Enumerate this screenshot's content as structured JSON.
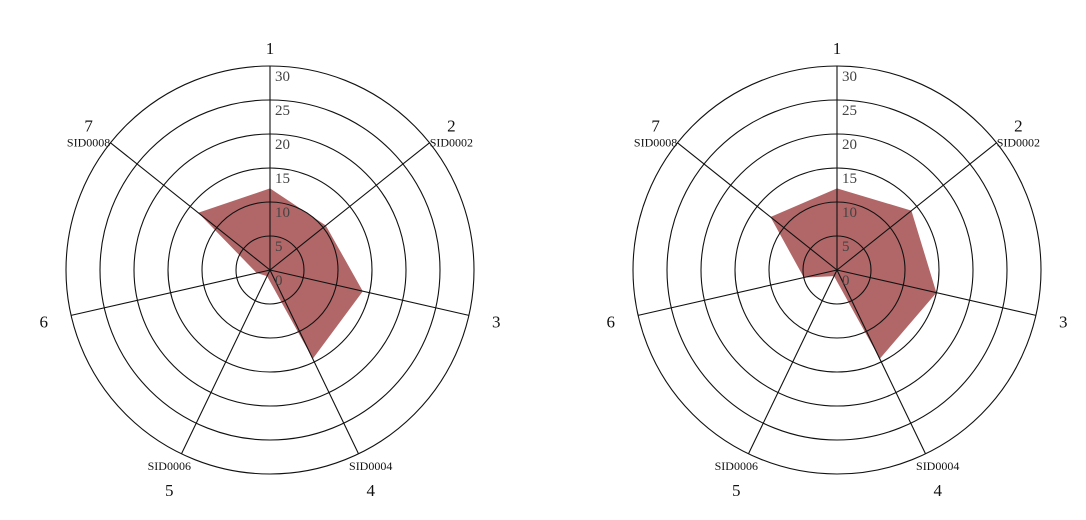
{
  "chart_data": [
    {
      "type": "radar",
      "axes": [
        {
          "number": "1",
          "label": ""
        },
        {
          "number": "2",
          "label": "SID0002"
        },
        {
          "number": "3",
          "label": ""
        },
        {
          "number": "4",
          "label": "SID0004"
        },
        {
          "number": "5",
          "label": "SID0006"
        },
        {
          "number": "6",
          "label": ""
        },
        {
          "number": "7",
          "label": "SID0008"
        }
      ],
      "ticks": [
        "0",
        "5",
        "10",
        "15",
        "20",
        "25",
        "30"
      ],
      "rlim": [
        0,
        30
      ],
      "values": [
        12,
        10.5,
        14,
        14.5,
        1,
        2,
        13.5
      ],
      "fill_color": "#a04547"
    },
    {
      "type": "radar",
      "axes": [
        {
          "number": "1",
          "label": ""
        },
        {
          "number": "2",
          "label": "SID0002"
        },
        {
          "number": "3",
          "label": ""
        },
        {
          "number": "4",
          "label": "SID0004"
        },
        {
          "number": "5",
          "label": "SID0006"
        },
        {
          "number": "6",
          "label": ""
        },
        {
          "number": "7",
          "label": "SID0008"
        }
      ],
      "ticks": [
        "0",
        "5",
        "10",
        "15",
        "20",
        "25",
        "30"
      ],
      "rlim": [
        0,
        30
      ],
      "values": [
        12,
        14,
        15,
        14.5,
        1,
        5,
        12.5
      ],
      "fill_color": "#a04547"
    }
  ]
}
